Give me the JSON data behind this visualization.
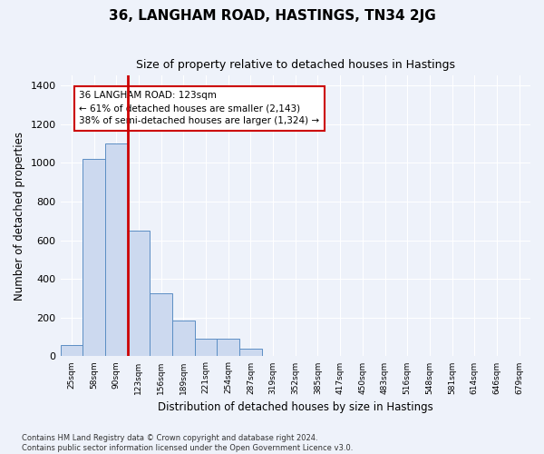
{
  "title": "36, LANGHAM ROAD, HASTINGS, TN34 2JG",
  "subtitle": "Size of property relative to detached houses in Hastings",
  "xlabel": "Distribution of detached houses by size in Hastings",
  "ylabel": "Number of detached properties",
  "categories": [
    "25sqm",
    "58sqm",
    "90sqm",
    "123sqm",
    "156sqm",
    "189sqm",
    "221sqm",
    "254sqm",
    "287sqm",
    "319sqm",
    "352sqm",
    "385sqm",
    "417sqm",
    "450sqm",
    "483sqm",
    "516sqm",
    "548sqm",
    "581sqm",
    "614sqm",
    "646sqm",
    "679sqm"
  ],
  "values": [
    60,
    1020,
    1100,
    650,
    325,
    185,
    90,
    90,
    40,
    0,
    0,
    0,
    0,
    0,
    0,
    0,
    0,
    0,
    0,
    0,
    0
  ],
  "bar_color": "#ccd9ef",
  "bar_edge_color": "#5b8ec4",
  "highlight_index": 3,
  "highlight_line_color": "#cc0000",
  "annotation_text": "36 LANGHAM ROAD: 123sqm\n← 61% of detached houses are smaller (2,143)\n38% of semi-detached houses are larger (1,324) →",
  "annotation_box_color": "#ffffff",
  "annotation_box_edge_color": "#cc0000",
  "ylim": [
    0,
    1450
  ],
  "yticks": [
    0,
    200,
    400,
    600,
    800,
    1000,
    1200,
    1400
  ],
  "title_fontsize": 11,
  "subtitle_fontsize": 9,
  "xlabel_fontsize": 8.5,
  "ylabel_fontsize": 8.5,
  "footnote": "Contains HM Land Registry data © Crown copyright and database right 2024.\nContains public sector information licensed under the Open Government Licence v3.0.",
  "background_color": "#eef2fa",
  "plot_background_color": "#eef2fa",
  "grid_color": "#ffffff"
}
